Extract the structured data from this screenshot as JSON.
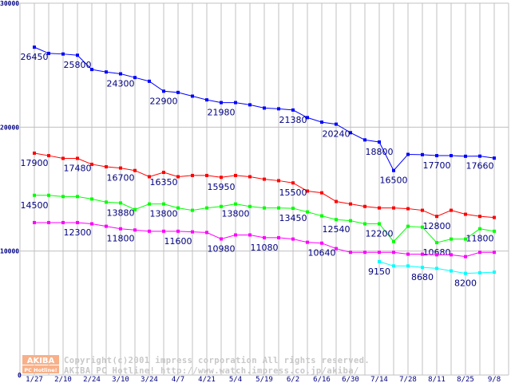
{
  "chart_data": {
    "type": "line",
    "title": "",
    "xlabel": "",
    "ylabel": "",
    "ylim": [
      0,
      30000
    ],
    "y_ticks": [
      "0",
      "10000",
      "20000",
      "30000"
    ],
    "y_tick_values": [
      0,
      10000,
      20000,
      30000
    ],
    "x_tick_labels": [
      "1/27",
      "2/10",
      "2/24",
      "3/10",
      "3/24",
      "4/7",
      "4/21",
      "5/4",
      "5/19",
      "6/2",
      "6/16",
      "6/30",
      "7/14",
      "7/28",
      "8/11",
      "8/25",
      "9/8"
    ],
    "x_tick_every": 2,
    "n_points": 33,
    "grid": true,
    "series": [
      {
        "color": "#0000ff",
        "start": 0,
        "values": [
          26450,
          25950,
          25900,
          25800,
          24650,
          24450,
          24300,
          24000,
          23700,
          22900,
          22800,
          22500,
          22200,
          21980,
          21980,
          21800,
          21540,
          21480,
          21380,
          20770,
          20400,
          20240,
          19550,
          18970,
          18800,
          16500,
          17800,
          17780,
          17700,
          17700,
          17650,
          17660,
          17500
        ],
        "labels": [
          {
            "i": 0,
            "text": "26450"
          },
          {
            "i": 3,
            "text": "25800"
          },
          {
            "i": 6,
            "text": "24300"
          },
          {
            "i": 9,
            "text": "22900"
          },
          {
            "i": 13,
            "text": "21980"
          },
          {
            "i": 18,
            "text": "21380"
          },
          {
            "i": 21,
            "text": "20240"
          },
          {
            "i": 24,
            "text": "18800"
          },
          {
            "i": 25,
            "text": "16500"
          },
          {
            "i": 28,
            "text": "17700"
          },
          {
            "i": 31,
            "text": "17660"
          }
        ]
      },
      {
        "color": "#ff0000",
        "start": 0,
        "values": [
          17900,
          17700,
          17480,
          17480,
          17000,
          16800,
          16700,
          16500,
          16000,
          16350,
          16000,
          16100,
          16100,
          15950,
          16100,
          16000,
          15800,
          15680,
          15500,
          14840,
          14700,
          14000,
          13800,
          13600,
          13480,
          13480,
          13420,
          13290,
          12800,
          13290,
          12970,
          12800,
          12710
        ],
        "labels": [
          {
            "i": 0,
            "text": "17900"
          },
          {
            "i": 3,
            "text": "17480"
          },
          {
            "i": 6,
            "text": "16700"
          },
          {
            "i": 9,
            "text": "16350"
          },
          {
            "i": 13,
            "text": "15950"
          },
          {
            "i": 18,
            "text": "15500"
          },
          {
            "i": 28,
            "text": "12800"
          }
        ]
      },
      {
        "color": "#00ff00",
        "start": 0,
        "values": [
          14500,
          14500,
          14400,
          14400,
          14200,
          13950,
          13880,
          13350,
          13800,
          13800,
          13480,
          13290,
          13480,
          13600,
          13800,
          13600,
          13480,
          13480,
          13450,
          13160,
          12840,
          12540,
          12450,
          12200,
          12200,
          10770,
          12000,
          11930,
          10680,
          10970,
          10970,
          11800,
          11600
        ],
        "labels": [
          {
            "i": 0,
            "text": "14500"
          },
          {
            "i": 6,
            "text": "13880"
          },
          {
            "i": 9,
            "text": "13800"
          },
          {
            "i": 14,
            "text": "13800"
          },
          {
            "i": 18,
            "text": "13450"
          },
          {
            "i": 21,
            "text": "12540"
          },
          {
            "i": 24,
            "text": "12200"
          },
          {
            "i": 28,
            "text": "10680"
          },
          {
            "i": 31,
            "text": "11800"
          }
        ]
      },
      {
        "color": "#ff00ff",
        "start": 0,
        "values": [
          12300,
          12300,
          12300,
          12300,
          12200,
          12000,
          11800,
          11700,
          11600,
          11600,
          11600,
          11550,
          11500,
          10980,
          11300,
          11300,
          11080,
          11080,
          10970,
          10710,
          10640,
          10200,
          9900,
          9900,
          9900,
          9900,
          9750,
          9750,
          9700,
          9700,
          9550,
          9900,
          9900
        ],
        "labels": [
          {
            "i": 3,
            "text": "12300"
          },
          {
            "i": 6,
            "text": "11800"
          },
          {
            "i": 10,
            "text": "11600"
          },
          {
            "i": 13,
            "text": "10980"
          },
          {
            "i": 16,
            "text": "11080"
          },
          {
            "i": 20,
            "text": "10640"
          }
        ]
      },
      {
        "color": "#00ffff",
        "start": 24,
        "values": [
          9150,
          8800,
          8800,
          8680,
          8600,
          8400,
          8200,
          8250,
          8300
        ],
        "labels": [
          {
            "i": 24,
            "text": "9150"
          },
          {
            "i": 27,
            "text": "8680"
          },
          {
            "i": 30,
            "text": "8200"
          }
        ]
      }
    ]
  },
  "watermark": {
    "logo_top": "AKIBA",
    "logo_bottom": "PC Hotline!",
    "line1": "Copyright(c)2001 impress corporation All rights reserved.",
    "line2": "AKIBA PC Hotline!  http://www.watch.impress.co.jp/akiba/"
  }
}
